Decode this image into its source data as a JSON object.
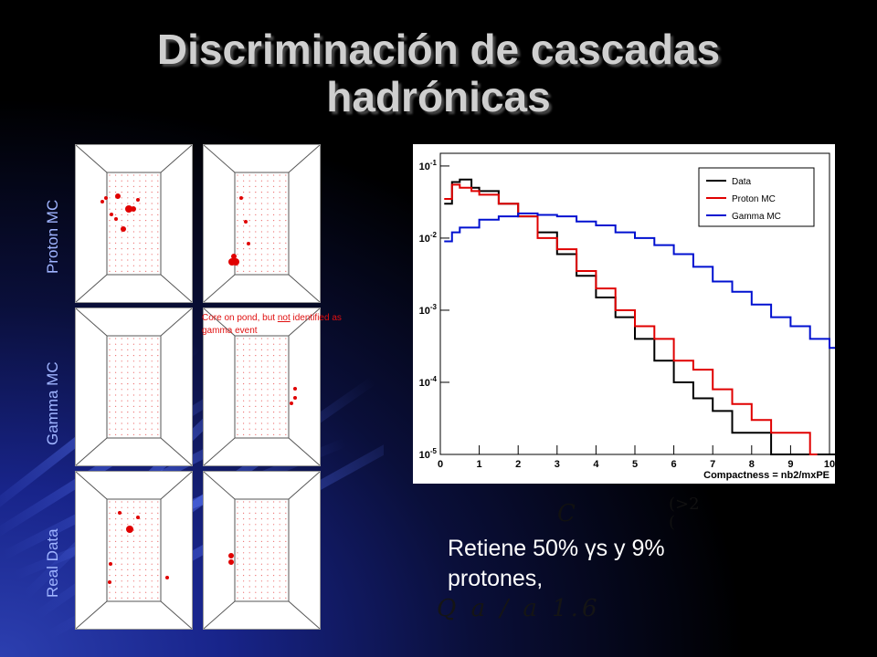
{
  "slide": {
    "title": "Discriminación de cascadas hadrónicas",
    "row_labels": [
      "Proton MC",
      "Gamma MC",
      "Real Data"
    ],
    "annotation_pre": "Core on pond, but ",
    "annotation_underlined": "not",
    "annotation_post": " identified as gamma event",
    "caption": "Retiene 50% γs y 9% protones,",
    "formula_c": "C",
    "formula_paren_top": "(>2",
    "formula_paren_bottom": "(",
    "formula_q": "Q  a / a  1.6"
  },
  "colors": {
    "background": "#000000",
    "title": "#cfcfcf",
    "row_label": "#9fb4ff",
    "annotation": "#e01010",
    "data": "#000000",
    "proton_mc": "#e00000",
    "gamma_mc": "#0010d0"
  },
  "chart_data": {
    "type": "line",
    "xlabel": "Compactness = nb2/mxPE",
    "ylabel": "",
    "xlim": [
      0,
      10
    ],
    "ylim": [
      1e-05,
      0.15
    ],
    "yscale": "log",
    "x_ticks": [
      "0",
      "1",
      "2",
      "3",
      "4",
      "5",
      "6",
      "7",
      "8",
      "9",
      "10"
    ],
    "y_ticks": [
      {
        "base": "10",
        "exp": "-1"
      },
      {
        "base": "10",
        "exp": "-2"
      },
      {
        "base": "10",
        "exp": "-3"
      },
      {
        "base": "10",
        "exp": "-4"
      },
      {
        "base": "10",
        "exp": "-5"
      }
    ],
    "legend_position": "top-right",
    "grid": false,
    "series": [
      {
        "name": "Data",
        "x": [
          0.1,
          0.3,
          0.5,
          0.8,
          1.0,
          1.5,
          2.0,
          2.5,
          3.0,
          3.5,
          4.0,
          4.5,
          5.0,
          5.5,
          6.0,
          6.5,
          7.0,
          7.5,
          8.0,
          8.5,
          9.0,
          9.5,
          10.0
        ],
        "y": [
          0.03,
          0.06,
          0.065,
          0.05,
          0.045,
          0.03,
          0.02,
          0.012,
          0.006,
          0.003,
          0.0015,
          0.0008,
          0.0004,
          0.0002,
          0.0001,
          6e-05,
          4e-05,
          2e-05,
          2e-05,
          1e-05,
          1e-05,
          1e-05,
          1e-05
        ]
      },
      {
        "name": "Proton MC",
        "x": [
          0.1,
          0.3,
          0.5,
          0.8,
          1.0,
          1.5,
          2.0,
          2.5,
          3.0,
          3.5,
          4.0,
          4.5,
          5.0,
          5.5,
          6.0,
          6.5,
          7.0,
          7.5,
          8.0,
          8.5,
          9.0,
          9.5
        ],
        "y": [
          0.035,
          0.055,
          0.05,
          0.045,
          0.04,
          0.03,
          0.02,
          0.01,
          0.007,
          0.0035,
          0.002,
          0.001,
          0.0006,
          0.0004,
          0.0002,
          0.00015,
          8e-05,
          5e-05,
          3e-05,
          2e-05,
          2e-05,
          1e-05
        ]
      },
      {
        "name": "Gamma MC",
        "x": [
          0.1,
          0.3,
          0.5,
          1.0,
          1.5,
          2.0,
          2.5,
          3.0,
          3.5,
          4.0,
          4.5,
          5.0,
          5.5,
          6.0,
          6.5,
          7.0,
          7.5,
          8.0,
          8.5,
          9.0,
          9.5,
          10.0
        ],
        "y": [
          0.009,
          0.012,
          0.014,
          0.018,
          0.02,
          0.022,
          0.021,
          0.02,
          0.017,
          0.015,
          0.012,
          0.01,
          0.008,
          0.006,
          0.004,
          0.0025,
          0.0018,
          0.0012,
          0.0008,
          0.0006,
          0.0004,
          0.0003
        ]
      }
    ]
  }
}
